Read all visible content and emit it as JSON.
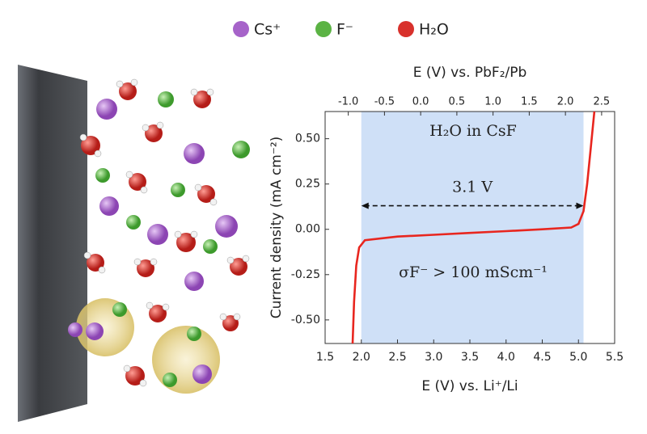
{
  "chart_data": {
    "type": "line",
    "xlabel": "E (V) vs. Li⁺/Li",
    "x2label": "E (V) vs. PbF₂/Pb",
    "ylabel": "Current density (mA cm⁻²)",
    "x": [
      1.88,
      1.9,
      1.93,
      1.97,
      2.05,
      2.5,
      3.0,
      3.5,
      4.0,
      4.5,
      4.9,
      5.0,
      5.07,
      5.12,
      5.17,
      5.22
    ],
    "series": [
      {
        "name": "H₂O in CsF",
        "color": "#e8261f",
        "values": [
          -0.63,
          -0.4,
          -0.2,
          -0.1,
          -0.06,
          -0.04,
          -0.03,
          -0.02,
          -0.01,
          0.0,
          0.01,
          0.03,
          0.1,
          0.25,
          0.45,
          0.65
        ]
      }
    ],
    "xlim": [
      1.5,
      5.5
    ],
    "x2lim": [
      -1.32,
      2.68
    ],
    "ylim": [
      -0.63,
      0.65
    ],
    "xticks": [
      {
        "value": 1.5,
        "label": "1.5"
      },
      {
        "value": 2,
        "label": "2.0"
      },
      {
        "value": 2.5,
        "label": "2.5"
      },
      {
        "value": 3,
        "label": "3.0"
      },
      {
        "value": 3.5,
        "label": "3.5"
      },
      {
        "value": 4,
        "label": "4.0"
      },
      {
        "value": 4.5,
        "label": "4.5"
      },
      {
        "value": 5,
        "label": "5.0"
      },
      {
        "value": 5.5,
        "label": "5.5"
      }
    ],
    "x2ticks": [
      {
        "value": -1,
        "label": "-1.0"
      },
      {
        "value": -0.5,
        "label": "-0.5"
      },
      {
        "value": 0,
        "label": "0.0"
      },
      {
        "value": 0.5,
        "label": "0.5"
      },
      {
        "value": 1,
        "label": "1.0"
      },
      {
        "value": 1.5,
        "label": "1.5"
      },
      {
        "value": 2,
        "label": "2.0"
      },
      {
        "value": 2.5,
        "label": "2.5"
      }
    ],
    "yticks": [
      {
        "value": 0.5,
        "label": "0.50"
      },
      {
        "value": 0.25,
        "label": "0.25"
      },
      {
        "value": 0,
        "label": "0.00"
      },
      {
        "value": -0.25,
        "label": "-0.25"
      },
      {
        "value": -0.5,
        "label": "-0.50"
      }
    ],
    "shaded_span": [
      2.0,
      5.07
    ],
    "shade_color": "#cfe0f7",
    "arrow": {
      "x": [
        2.0,
        5.07
      ],
      "y": 0.13,
      "label": "3.1 V"
    },
    "annotation": "σF⁻ > 100 mScm⁻¹"
  },
  "illustration": {
    "legend": [
      {
        "name": "Cs⁺",
        "color": "#a663c9"
      },
      {
        "name": "F⁻",
        "color": "#5bb344"
      },
      {
        "name": "H₂O",
        "color": "#d8312c"
      }
    ]
  }
}
